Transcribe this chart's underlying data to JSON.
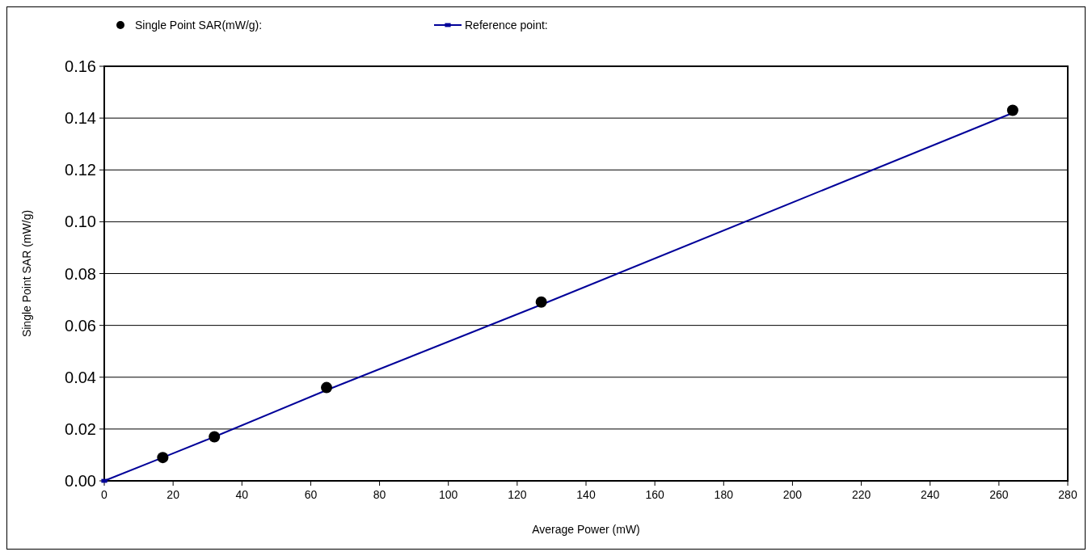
{
  "chart_data": {
    "type": "scatter",
    "xlabel": "Average Power (mW)",
    "ylabel": "Single Point SAR (mW/g)",
    "xlim": [
      0,
      280
    ],
    "xticks": [
      0,
      20,
      40,
      60,
      80,
      100,
      120,
      140,
      160,
      180,
      200,
      220,
      240,
      260,
      280
    ],
    "ylim": [
      0,
      0.16
    ],
    "yticks": [
      {
        "value": 0,
        "label": "0.00"
      },
      {
        "value": 0.02,
        "label": "0.02"
      },
      {
        "value": 0.04,
        "label": "0.04"
      },
      {
        "value": 0.06,
        "label": "0.06"
      },
      {
        "value": 0.08,
        "label": "0.08"
      },
      {
        "value": 0.1,
        "label": "0.10"
      },
      {
        "value": 0.12,
        "label": "0.12"
      },
      {
        "value": 0.14,
        "label": "0.14"
      },
      {
        "value": 0.16,
        "label": "0.16"
      }
    ],
    "grid": "y",
    "legend": "top left",
    "series": [
      {
        "name": "Single Point SAR(mW/g):",
        "type": "scatter",
        "marker": "circle",
        "color": "#000000",
        "x": [
          17,
          32,
          64.6,
          127,
          264
        ],
        "values": [
          0.009,
          0.017,
          0.036,
          0.069,
          0.143
        ]
      },
      {
        "name": "Reference point:",
        "type": "line",
        "marker": "square",
        "color": "#000099",
        "x": [
          0,
          17,
          32,
          64.6,
          127,
          264
        ],
        "values": [
          0,
          0.009,
          0.017,
          0.035,
          0.068,
          0.142
        ]
      }
    ]
  }
}
